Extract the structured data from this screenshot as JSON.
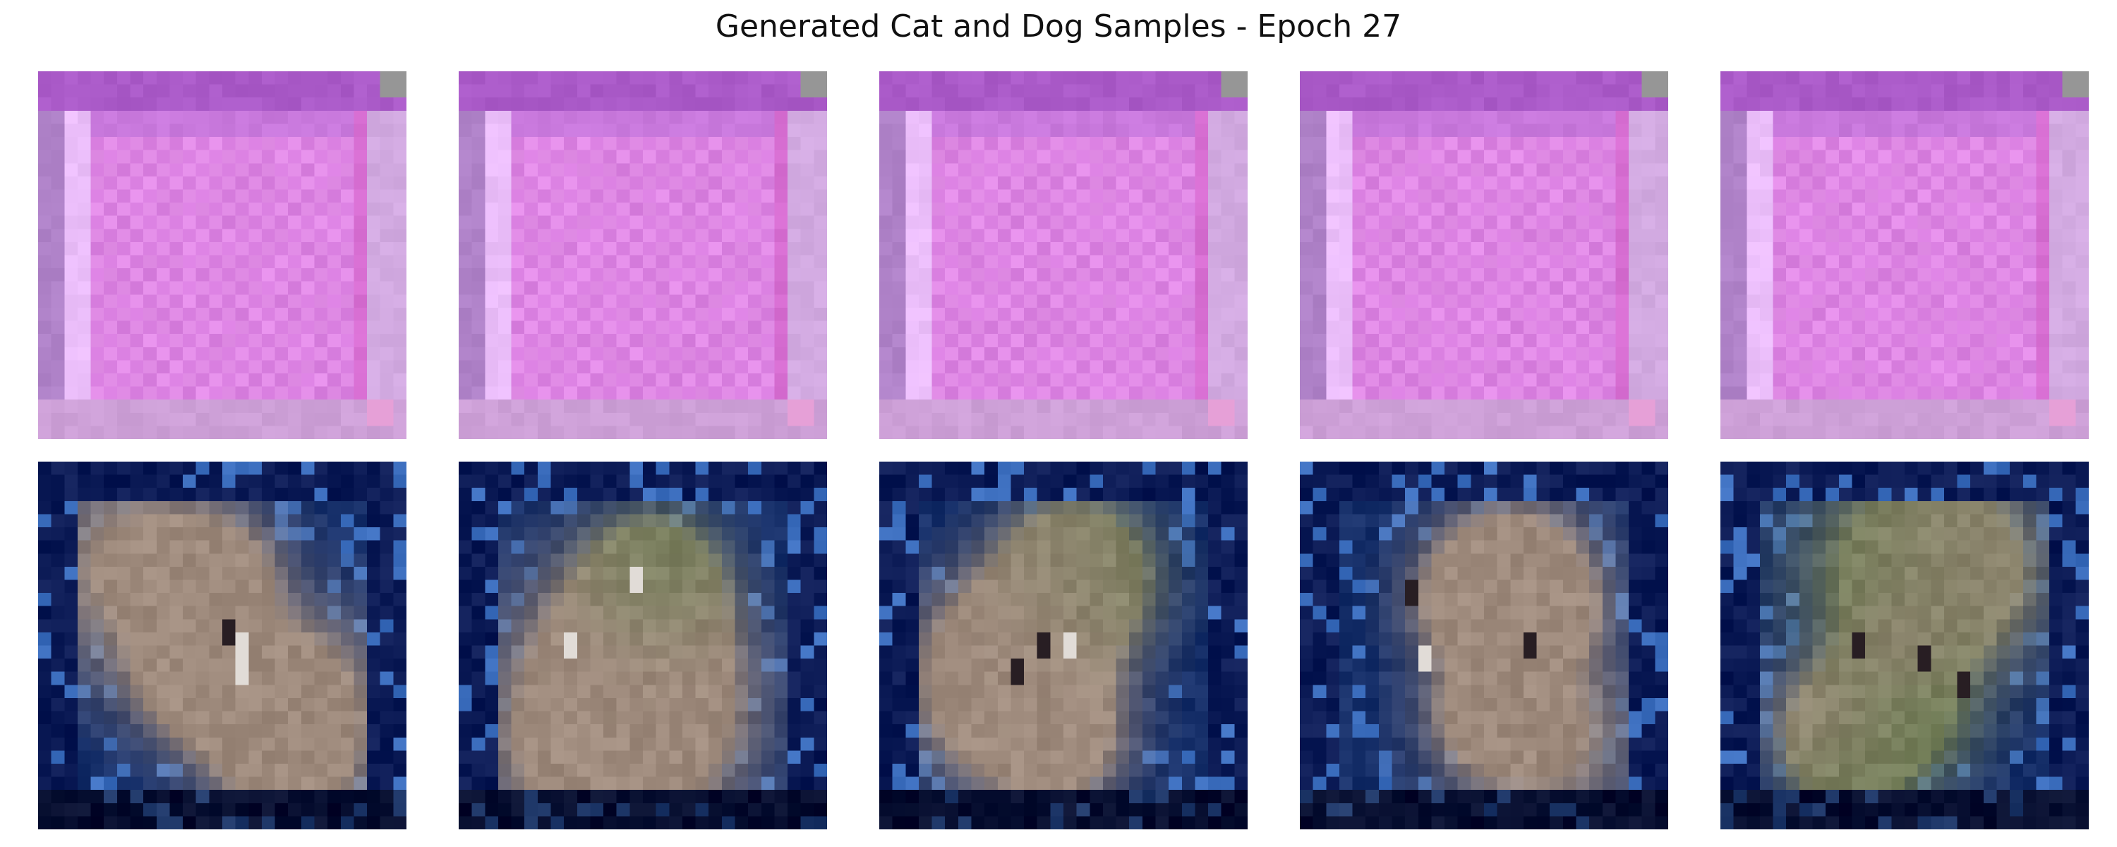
{
  "figure": {
    "title": "Generated Cat and Dog Samples - Epoch 27"
  },
  "samples": {
    "rows": 2,
    "columns": 5,
    "row_descriptions": [
      "collapsed magenta/pink tiles with pale border",
      "blurry dark-blue framed images with brownish animal-like blobs"
    ],
    "palette": {
      "pink_border": "#b57bd0",
      "pink_fill": "#e38ee8",
      "pink_inner": "#d97fe0",
      "blue_bg": "#17306a",
      "blue_edge": "#0b1a55",
      "animal_tone": "#9e8a7c",
      "green_tone": "#6f7c55"
    }
  }
}
